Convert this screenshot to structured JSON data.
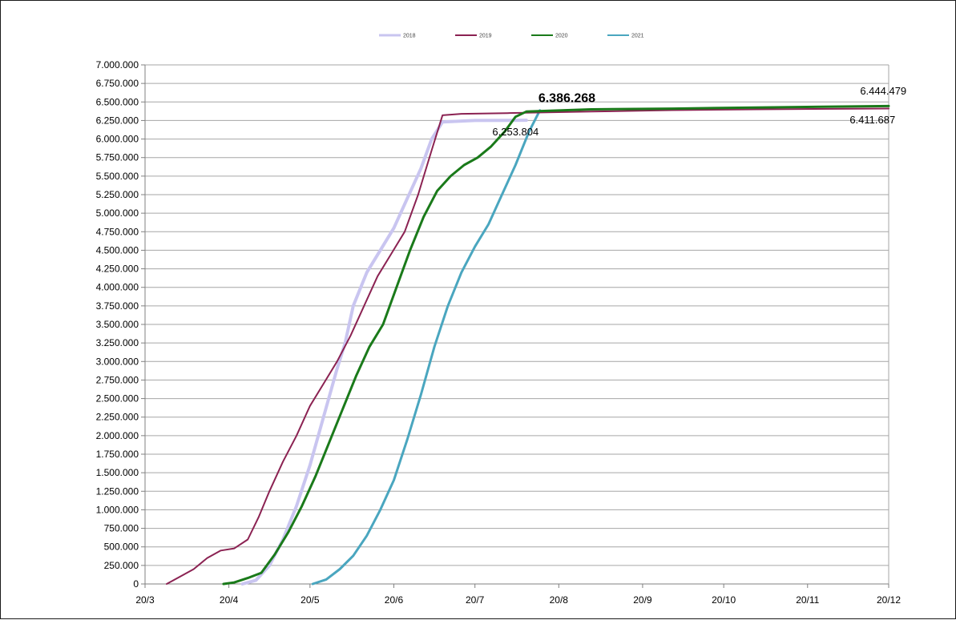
{
  "chart_data": {
    "type": "line",
    "title": "",
    "xlabel": "",
    "ylabel": "",
    "ylim": [
      0,
      7000000
    ],
    "xlim": [
      "2020-03-20",
      "2020-12-20"
    ],
    "grid": true,
    "legend_position": "top",
    "x_tick_labels": [
      "20/3",
      "20/4",
      "20/5",
      "20/6",
      "20/7",
      "20/8",
      "20/9",
      "20/10",
      "20/11",
      "20/12"
    ],
    "x_tick_dates": [
      "2020-03-20",
      "2020-04-20",
      "2020-05-20",
      "2020-06-20",
      "2020-07-20",
      "2020-08-20",
      "2020-09-20",
      "2020-10-20",
      "2020-11-20",
      "2020-12-20"
    ],
    "y_ticks": [
      0,
      250000,
      500000,
      750000,
      1000000,
      1250000,
      1500000,
      1750000,
      2000000,
      2250000,
      2500000,
      2750000,
      3000000,
      3250000,
      3500000,
      3750000,
      4000000,
      4250000,
      4500000,
      4750000,
      5000000,
      5250000,
      5500000,
      5750000,
      6000000,
      6250000,
      6500000,
      6750000,
      7000000
    ],
    "y_tick_labels": [
      "0",
      "250.000",
      "500.000",
      "750.000",
      "1.000.000",
      "1.250.000",
      "1.500.000",
      "1.750.000",
      "2.000.000",
      "2.250.000",
      "2.500.000",
      "2.750.000",
      "3.000.000",
      "3.250.000",
      "3.500.000",
      "3.750.000",
      "4.000.000",
      "4.250.000",
      "4.500.000",
      "4.750.000",
      "5.000.000",
      "5.250.000",
      "5.500.000",
      "5.750.000",
      "6.000.000",
      "6.250.000",
      "6.500.000",
      "6.750.000",
      "7.000.000"
    ],
    "series": [
      {
        "name": "2018",
        "color": "#c9c5f0",
        "width": 4,
        "points": [
          [
            "2020-04-25",
            0
          ],
          [
            "2020-04-30",
            50000
          ],
          [
            "2020-05-05",
            250000
          ],
          [
            "2020-05-10",
            600000
          ],
          [
            "2020-05-15",
            1050000
          ],
          [
            "2020-05-20",
            1600000
          ],
          [
            "2020-05-25",
            2250000
          ],
          [
            "2020-05-30",
            2900000
          ],
          [
            "2020-06-02",
            3250000
          ],
          [
            "2020-06-05",
            3750000
          ],
          [
            "2020-06-10",
            4200000
          ],
          [
            "2020-06-15",
            4500000
          ],
          [
            "2020-06-20",
            4800000
          ],
          [
            "2020-06-25",
            5200000
          ],
          [
            "2020-06-30",
            5600000
          ],
          [
            "2020-07-04",
            6000000
          ],
          [
            "2020-07-08",
            6230000
          ],
          [
            "2020-07-20",
            6250000
          ],
          [
            "2020-08-08",
            6253804
          ]
        ]
      },
      {
        "name": "2019",
        "color": "#8b2252",
        "width": 2,
        "points": [
          [
            "2020-03-28",
            0
          ],
          [
            "2020-04-02",
            100000
          ],
          [
            "2020-04-07",
            200000
          ],
          [
            "2020-04-12",
            350000
          ],
          [
            "2020-04-17",
            450000
          ],
          [
            "2020-04-22",
            480000
          ],
          [
            "2020-04-27",
            600000
          ],
          [
            "2020-05-01",
            900000
          ],
          [
            "2020-05-05",
            1250000
          ],
          [
            "2020-05-10",
            1650000
          ],
          [
            "2020-05-15",
            2000000
          ],
          [
            "2020-05-20",
            2400000
          ],
          [
            "2020-05-25",
            2700000
          ],
          [
            "2020-05-30",
            3000000
          ],
          [
            "2020-06-04",
            3350000
          ],
          [
            "2020-06-09",
            3750000
          ],
          [
            "2020-06-14",
            4150000
          ],
          [
            "2020-06-19",
            4450000
          ],
          [
            "2020-06-24",
            4750000
          ],
          [
            "2020-06-29",
            5250000
          ],
          [
            "2020-07-04",
            5850000
          ],
          [
            "2020-07-08",
            6320000
          ],
          [
            "2020-07-15",
            6340000
          ],
          [
            "2020-08-01",
            6350000
          ],
          [
            "2020-09-01",
            6370000
          ],
          [
            "2020-10-01",
            6390000
          ],
          [
            "2020-11-01",
            6400000
          ],
          [
            "2020-12-20",
            6411687
          ]
        ]
      },
      {
        "name": "2020",
        "color": "#1a7a1a",
        "width": 3,
        "points": [
          [
            "2020-04-18",
            0
          ],
          [
            "2020-04-22",
            20000
          ],
          [
            "2020-04-27",
            80000
          ],
          [
            "2020-05-02",
            150000
          ],
          [
            "2020-05-07",
            400000
          ],
          [
            "2020-05-12",
            700000
          ],
          [
            "2020-05-17",
            1050000
          ],
          [
            "2020-05-22",
            1450000
          ],
          [
            "2020-05-27",
            1900000
          ],
          [
            "2020-06-01",
            2350000
          ],
          [
            "2020-06-06",
            2800000
          ],
          [
            "2020-06-11",
            3200000
          ],
          [
            "2020-06-16",
            3500000
          ],
          [
            "2020-06-21",
            4000000
          ],
          [
            "2020-06-26",
            4500000
          ],
          [
            "2020-07-01",
            4950000
          ],
          [
            "2020-07-06",
            5300000
          ],
          [
            "2020-07-11",
            5500000
          ],
          [
            "2020-07-16",
            5650000
          ],
          [
            "2020-07-21",
            5750000
          ],
          [
            "2020-07-26",
            5900000
          ],
          [
            "2020-07-31",
            6100000
          ],
          [
            "2020-08-04",
            6300000
          ],
          [
            "2020-08-08",
            6370000
          ],
          [
            "2020-09-01",
            6400000
          ],
          [
            "2020-10-01",
            6410000
          ],
          [
            "2020-11-01",
            6425000
          ],
          [
            "2020-12-20",
            6444479
          ]
        ]
      },
      {
        "name": "2021",
        "color": "#4aa6bf",
        "width": 3,
        "points": [
          [
            "2020-05-21",
            0
          ],
          [
            "2020-05-26",
            60000
          ],
          [
            "2020-05-31",
            200000
          ],
          [
            "2020-06-05",
            380000
          ],
          [
            "2020-06-10",
            650000
          ],
          [
            "2020-06-15",
            1000000
          ],
          [
            "2020-06-20",
            1400000
          ],
          [
            "2020-06-25",
            1950000
          ],
          [
            "2020-06-30",
            2550000
          ],
          [
            "2020-07-05",
            3200000
          ],
          [
            "2020-07-10",
            3750000
          ],
          [
            "2020-07-15",
            4200000
          ],
          [
            "2020-07-20",
            4550000
          ],
          [
            "2020-07-25",
            4850000
          ],
          [
            "2020-07-30",
            5250000
          ],
          [
            "2020-08-04",
            5650000
          ],
          [
            "2020-08-09",
            6100000
          ],
          [
            "2020-08-13",
            6386268
          ]
        ]
      }
    ],
    "annotations": [
      {
        "text": "6.253.804",
        "date": "2020-08-04",
        "value": 6050000,
        "style": "normal"
      },
      {
        "text": "6.386.268",
        "date": "2020-08-23",
        "value": 6500000,
        "style": "bold"
      },
      {
        "text": "6.444.479",
        "date": "2020-12-18",
        "value": 6600000,
        "style": "normal"
      },
      {
        "text": "6.411.687",
        "date": "2020-12-14",
        "value": 6210000,
        "style": "normal"
      }
    ]
  }
}
